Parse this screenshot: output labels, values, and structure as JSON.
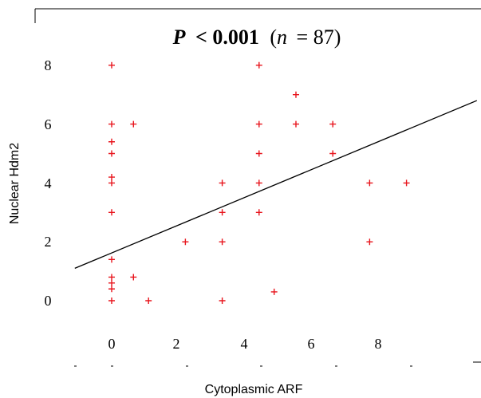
{
  "chart_data": {
    "type": "scatter",
    "title_parts": {
      "p_symbol": "P",
      "p_value": "< 0.001",
      "n_open": "(",
      "n_symbol": "n",
      "n_value": "= 87)"
    },
    "xlabel": "Cytoplasmic ARF",
    "ylabel": "Nuclear Hdm2",
    "x_ticks": [
      "0",
      "2",
      "4",
      "6",
      "8"
    ],
    "y_ticks": [
      "0",
      "2",
      "4",
      "6",
      "8"
    ],
    "xlim": [
      -2.1,
      10.9
    ],
    "ylim": [
      -2.2,
      9.0
    ],
    "grid": false,
    "marker_color": "#e8141c",
    "line_color": "#000000",
    "points": [
      {
        "x": 0,
        "y": 8
      },
      {
        "x": 0,
        "y": 6
      },
      {
        "x": 0,
        "y": 5.4
      },
      {
        "x": 0,
        "y": 5
      },
      {
        "x": 0,
        "y": 4.2
      },
      {
        "x": 0,
        "y": 4
      },
      {
        "x": 0,
        "y": 3
      },
      {
        "x": 0,
        "y": 1.4
      },
      {
        "x": 0,
        "y": 0.8
      },
      {
        "x": 0,
        "y": 0.6
      },
      {
        "x": 0,
        "y": 0.4
      },
      {
        "x": 0,
        "y": 0
      },
      {
        "x": 0.65,
        "y": 6
      },
      {
        "x": 0.65,
        "y": 0.8
      },
      {
        "x": 1.1,
        "y": 0
      },
      {
        "x": 2.2,
        "y": 2
      },
      {
        "x": 3.3,
        "y": 4
      },
      {
        "x": 3.3,
        "y": 3
      },
      {
        "x": 3.3,
        "y": 2
      },
      {
        "x": 3.3,
        "y": 0
      },
      {
        "x": 4.4,
        "y": 8
      },
      {
        "x": 4.4,
        "y": 6
      },
      {
        "x": 4.4,
        "y": 5
      },
      {
        "x": 4.4,
        "y": 4
      },
      {
        "x": 4.4,
        "y": 3
      },
      {
        "x": 4.85,
        "y": 0.3
      },
      {
        "x": 5.5,
        "y": 7
      },
      {
        "x": 5.5,
        "y": 6
      },
      {
        "x": 6.6,
        "y": 6
      },
      {
        "x": 6.6,
        "y": 5
      },
      {
        "x": 7.7,
        "y": 4
      },
      {
        "x": 7.7,
        "y": 2
      },
      {
        "x": 8.8,
        "y": 4
      }
    ],
    "regression": {
      "x": [
        -1.1,
        10.9
      ],
      "y": [
        1.1,
        6.8
      ]
    }
  }
}
